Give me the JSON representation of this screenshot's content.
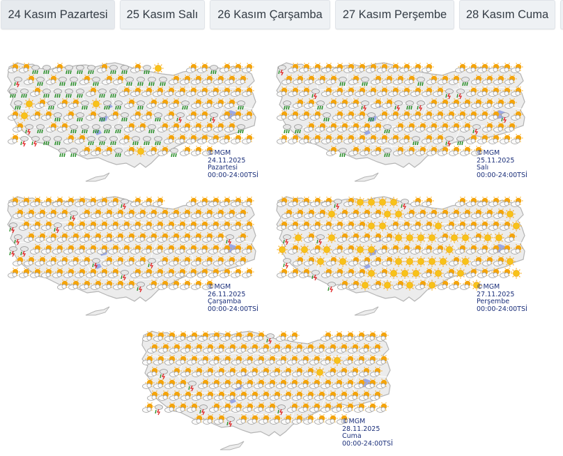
{
  "tabs": [
    {
      "label": "24 Kasım Pazartesi"
    },
    {
      "label": "25 Kasım Salı"
    },
    {
      "label": "26 Kasım Çarşamba"
    },
    {
      "label": "27 Kasım Perşembe"
    },
    {
      "label": "28 Kasım Cuma"
    }
  ],
  "maps": [
    {
      "copyright": "©MGM",
      "date": "24.11.2025",
      "day": "Pazartesi",
      "hours": "00:00-24:00TSİ",
      "weather": {
        "partly_cloudy": 0.58,
        "rain": 0.3,
        "sunny": 0.06,
        "thunder": 0.06
      }
    },
    {
      "copyright": "©MGM",
      "date": "25.11.2025",
      "day": "Salı",
      "hours": "00:00-24:00TSİ",
      "weather": {
        "partly_cloudy": 0.84,
        "rain": 0.09,
        "sunny": 0.0,
        "thunder": 0.07
      }
    },
    {
      "copyright": "©MGM",
      "date": "26.11.2025",
      "day": "Çarşamba",
      "hours": "00:00-24:00TSİ",
      "weather": {
        "partly_cloudy": 0.92,
        "rain": 0.0,
        "sunny": 0.0,
        "thunder": 0.08
      }
    },
    {
      "copyright": "©MGM",
      "date": "27.11.2025",
      "day": "Perşembe",
      "hours": "00:00-24:00TSİ",
      "weather": {
        "partly_cloudy": 0.64,
        "rain": 0.0,
        "sunny": 0.28,
        "thunder": 0.08
      }
    },
    {
      "copyright": "©MGM",
      "date": "28.11.2025",
      "day": "Cuma",
      "hours": "00:00-24:00TSİ",
      "weather": {
        "partly_cloudy": 0.9,
        "rain": 0.0,
        "sunny": 0.02,
        "thunder": 0.08
      }
    }
  ],
  "colors": {
    "land": "#ececec",
    "border": "#b4b4b4",
    "lake": "#9aa8e6",
    "sun": "#f5a40a",
    "cloud": "#d0d0d0",
    "rain": "#2a8f2a",
    "lightning": "#e02020",
    "caption": "#1b2f7a",
    "tab_bg": "#eef1f4",
    "tab_text": "#333b44"
  },
  "icons": [
    "partly-cloudy-icon",
    "sunny-icon",
    "rain-icon",
    "thunderstorm-icon"
  ]
}
